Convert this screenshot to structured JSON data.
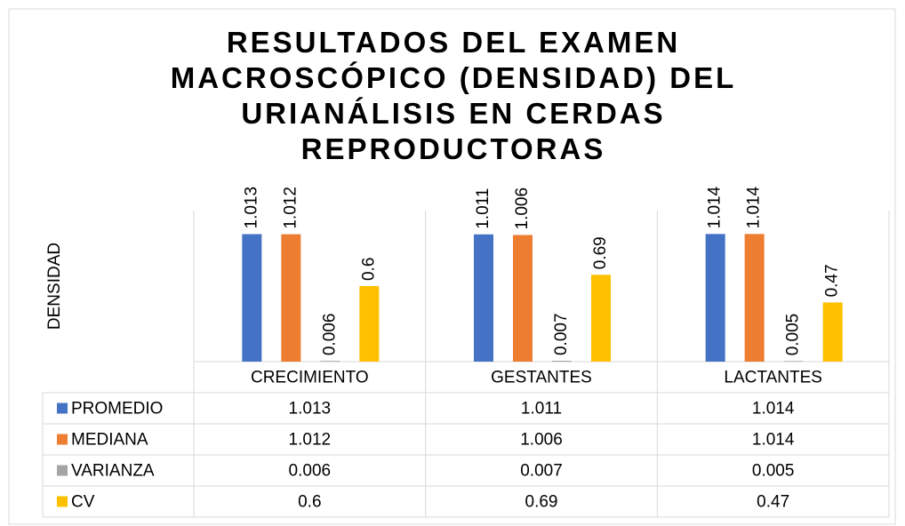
{
  "chart_data": {
    "type": "bar",
    "title": "RESULTADOS DEL EXAMEN MACROSCÓPICO (DENSIDAD) DEL URIANÁLISIS EN CERDAS REPRODUCTORAS",
    "y_label": "DENSIDAD",
    "categories": [
      "CRECIMIENTO",
      "GESTANTES",
      "LACTANTES"
    ],
    "series": [
      {
        "name": "PROMEDIO",
        "color": "#4472c4",
        "values": [
          1.013,
          1.011,
          1.014
        ]
      },
      {
        "name": "MEDIANA",
        "color": "#ed7d31",
        "values": [
          1.012,
          1.006,
          1.014
        ]
      },
      {
        "name": "VARIANZA",
        "color": "#a5a5a5",
        "values": [
          0.006,
          0.007,
          0.005
        ]
      },
      {
        "name": "CV",
        "color": "#ffc000",
        "values": [
          0.6,
          0.69,
          0.47
        ]
      }
    ],
    "ylim": [
      0,
      1.2
    ]
  }
}
